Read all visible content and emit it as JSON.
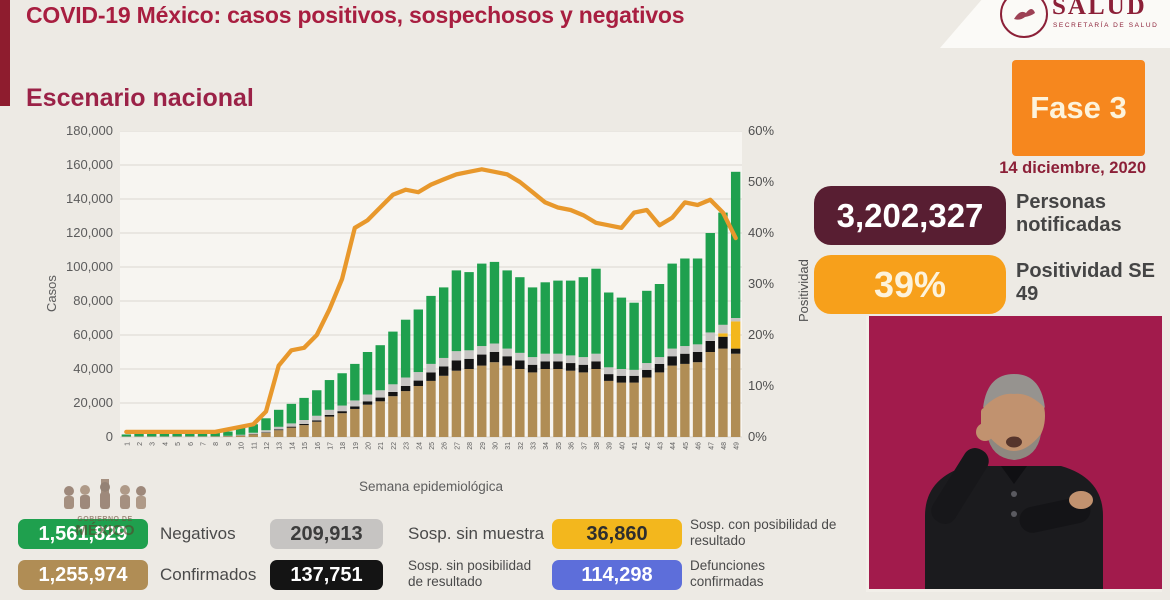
{
  "header": {
    "title": "COVID-19 México: casos positivos, sospechosos y negativos",
    "logo": {
      "title": "SALUD",
      "subtitle": "SECRETARÍA DE SALUD"
    }
  },
  "section_title": "Escenario nacional",
  "phase": {
    "label": "Fase 3",
    "date": "14 diciembre, 2020"
  },
  "stats": [
    {
      "value": "3,202,327",
      "label": "Personas notificadas"
    },
    {
      "value": "39%",
      "label": "Positividad SE 49"
    }
  ],
  "watermark": {
    "line1": "GOBIERNO DE",
    "line2": "MÉXICO"
  },
  "legend": [
    {
      "value": "1,561,829",
      "label": "Negativos",
      "color": "#1FA04E",
      "text_color": "#FFFFFF"
    },
    {
      "value": "209,913",
      "label": "Sosp. sin muestra",
      "color": "#C6C4C2",
      "text_color": "#3C3C3C"
    },
    {
      "value": "36,860",
      "label": "Sosp. con posibilidad de resultado",
      "color": "#F3B71D",
      "text_color": "#2E2E2E"
    },
    {
      "value": "1,255,974",
      "label": "Confirmados",
      "color": "#B08D55",
      "text_color": "#FFFFFF"
    },
    {
      "value": "137,751",
      "label": "Sosp. sin posibilidad de resultado",
      "color": "#141414",
      "text_color": "#FFFFFF"
    },
    {
      "value": "114,298",
      "label": "Defunciones confirmadas",
      "color": "#5D6EDA",
      "text_color": "#FFFFFF"
    }
  ],
  "chart_data": {
    "type": "bar",
    "title": "Escenario nacional",
    "xlabel": "Semana epidemiológica",
    "ylabel_left": "Casos",
    "ylabel_right": "Positividad",
    "ylim_left": [
      0,
      180000
    ],
    "ylim_right": [
      0,
      60
    ],
    "grid": true,
    "y_ticks_left": [
      "180,000",
      "160,000",
      "140,000",
      "120,000",
      "100,000",
      "80,000",
      "60,000",
      "40,000",
      "20,000",
      "0"
    ],
    "y_ticks_right": [
      "60%",
      "50%",
      "40%",
      "30%",
      "20%",
      "10%",
      "0%"
    ],
    "categories": [
      1,
      2,
      3,
      4,
      5,
      6,
      7,
      8,
      9,
      10,
      11,
      12,
      13,
      14,
      15,
      16,
      17,
      18,
      19,
      20,
      21,
      22,
      23,
      24,
      25,
      26,
      27,
      28,
      29,
      30,
      31,
      32,
      33,
      34,
      35,
      36,
      37,
      38,
      39,
      40,
      41,
      42,
      43,
      44,
      45,
      46,
      47,
      48,
      49
    ],
    "series": [
      {
        "name": "Confirmados",
        "type": "bar",
        "color": "#B08D55",
        "values": [
          100,
          150,
          150,
          150,
          200,
          200,
          200,
          250,
          400,
          800,
          1500,
          2500,
          4000,
          5500,
          7000,
          9000,
          12000,
          14000,
          16500,
          19000,
          21000,
          24000,
          27000,
          30000,
          33000,
          36000,
          39000,
          40000,
          42000,
          44000,
          42000,
          40000,
          38000,
          40000,
          40000,
          39000,
          38000,
          40000,
          33000,
          32000,
          32000,
          35000,
          38000,
          42000,
          43000,
          44000,
          50000,
          52000,
          49000
        ]
      },
      {
        "name": "Sosp. sin posibilidad de resultado",
        "type": "bar",
        "color": "#141414",
        "values": [
          50,
          50,
          50,
          50,
          50,
          50,
          50,
          50,
          100,
          100,
          200,
          300,
          500,
          600,
          700,
          800,
          1000,
          1200,
          1500,
          2000,
          2200,
          2500,
          3000,
          3200,
          5000,
          5500,
          6000,
          6000,
          6500,
          6000,
          5500,
          5000,
          4500,
          4500,
          4500,
          4500,
          4500,
          4500,
          4000,
          4000,
          4000,
          4500,
          5000,
          5500,
          6000,
          6000,
          6500,
          7000,
          3000
        ]
      },
      {
        "name": "Sosp. con posibilidad de resultado",
        "type": "bar",
        "color": "#F3B71D",
        "values": [
          0,
          0,
          0,
          0,
          0,
          0,
          0,
          0,
          0,
          0,
          0,
          0,
          0,
          0,
          0,
          0,
          0,
          0,
          0,
          0,
          0,
          0,
          0,
          0,
          0,
          0,
          0,
          0,
          0,
          0,
          0,
          0,
          0,
          0,
          0,
          0,
          0,
          0,
          0,
          0,
          0,
          0,
          0,
          0,
          0,
          0,
          0,
          2000,
          16000
        ]
      },
      {
        "name": "Sosp. sin muestra",
        "type": "bar",
        "color": "#C6C4C2",
        "values": [
          150,
          150,
          150,
          150,
          150,
          150,
          150,
          150,
          200,
          400,
          800,
          1200,
          1500,
          1900,
          2300,
          2700,
          3000,
          3300,
          3500,
          4000,
          4300,
          4500,
          5000,
          5000,
          5000,
          5000,
          5500,
          5000,
          5000,
          5000,
          4500,
          4500,
          4500,
          4500,
          4500,
          4500,
          4500,
          4500,
          4000,
          4000,
          3500,
          4000,
          4000,
          4500,
          4500,
          4500,
          5000,
          5000,
          2000
        ]
      },
      {
        "name": "Negativos",
        "type": "bar",
        "color": "#1FA04E",
        "values": [
          1200,
          1700,
          1900,
          1700,
          1900,
          2100,
          1900,
          2100,
          2500,
          4200,
          5000,
          7000,
          10000,
          11500,
          13000,
          15000,
          17500,
          19000,
          21500,
          25000,
          26500,
          31000,
          34000,
          36800,
          40000,
          41500,
          47500,
          46000,
          48500,
          48000,
          46000,
          44500,
          41000,
          42000,
          43000,
          44000,
          47000,
          50000,
          44000,
          42000,
          39500,
          42500,
          43000,
          50000,
          51500,
          50500,
          58500,
          66000,
          86000
        ]
      },
      {
        "name": "Positividad",
        "type": "line",
        "axis": "right",
        "color": "#E8982C",
        "values": [
          1,
          1,
          1,
          1,
          1,
          1,
          1,
          1,
          1.5,
          2,
          2.5,
          5,
          14,
          17,
          17.5,
          20,
          25,
          31,
          41,
          42.5,
          45,
          47.5,
          48.5,
          48,
          49.5,
          50.5,
          51.5,
          52,
          52.5,
          52,
          51.5,
          50,
          48,
          46,
          45,
          44.5,
          43.5,
          42,
          41.5,
          41,
          44,
          44.5,
          41.5,
          43,
          46,
          45.5,
          46.5,
          44,
          39
        ]
      }
    ]
  }
}
